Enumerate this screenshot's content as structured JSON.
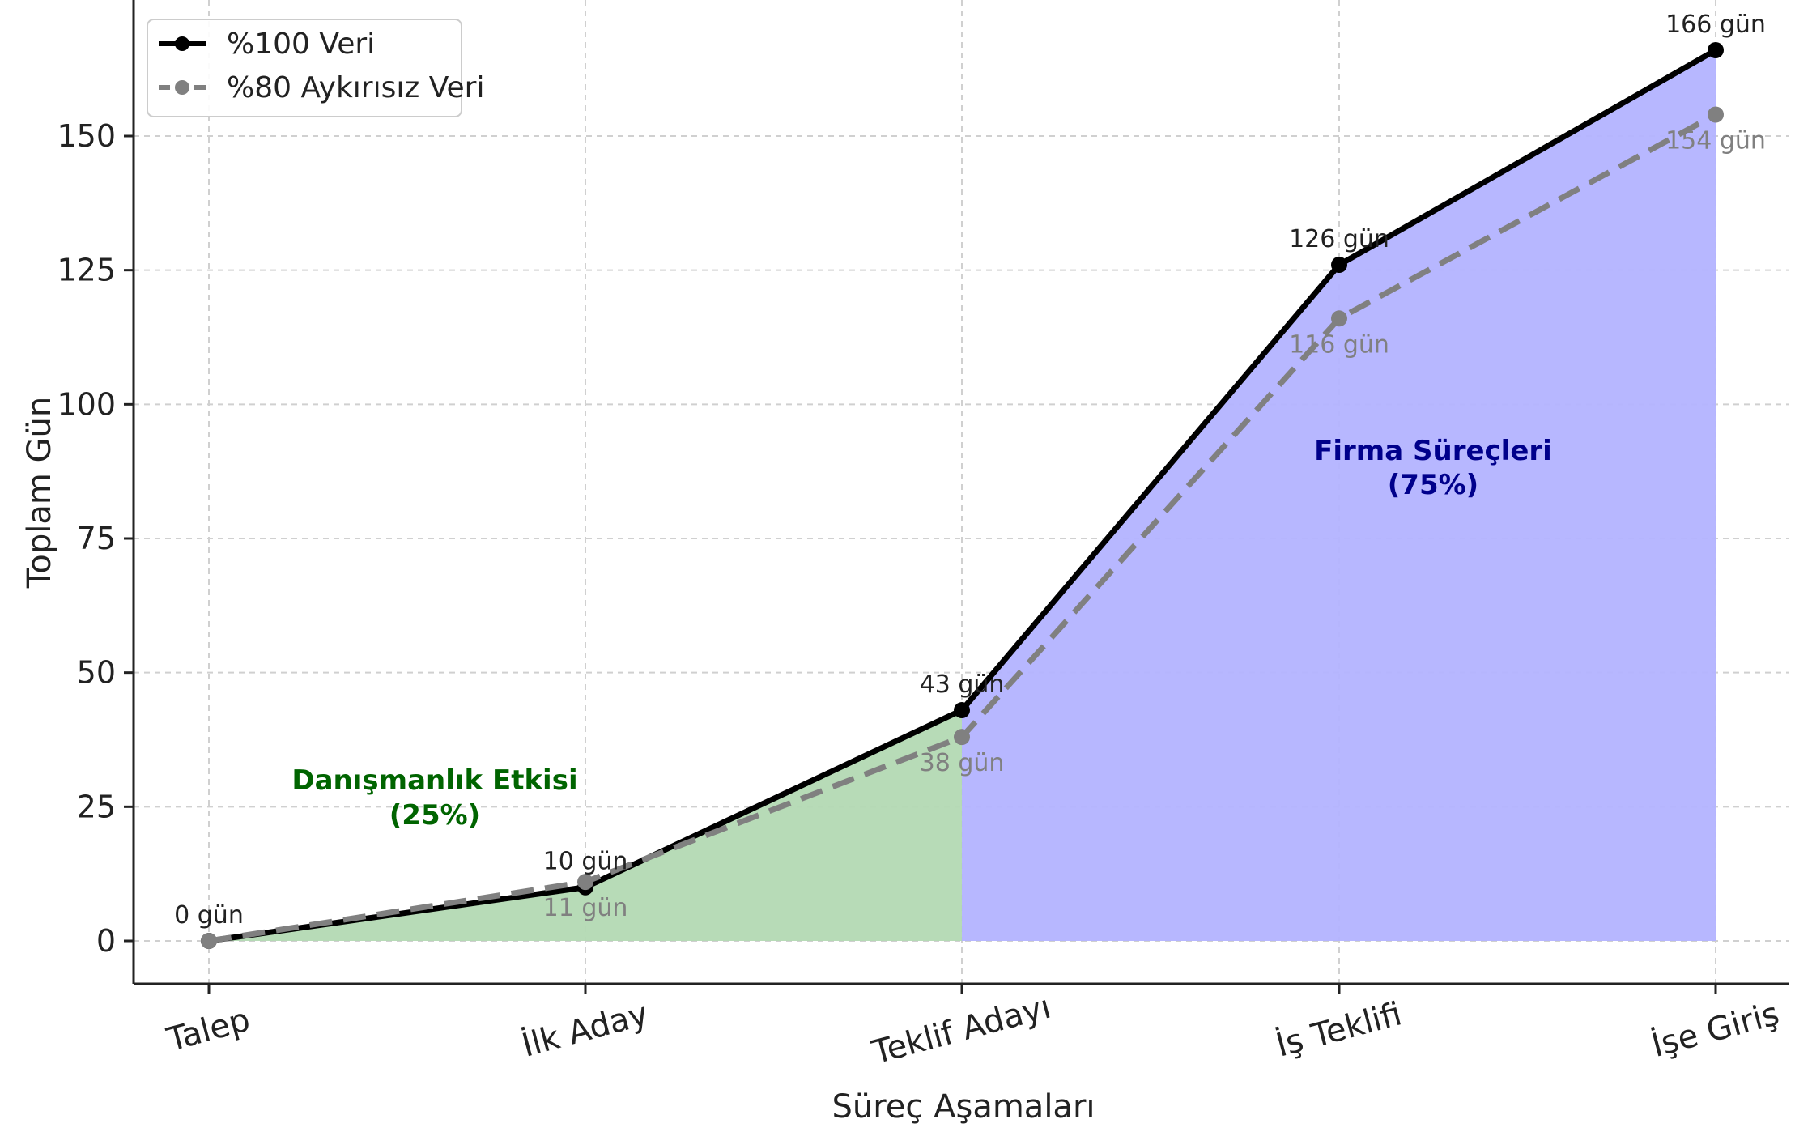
{
  "chart_data": {
    "type": "line",
    "title": "",
    "xlabel": "Süreç Aşamaları",
    "ylabel": "Toplam Gün",
    "categories": [
      "Talep",
      "İlk Aday",
      "Teklif Adayı",
      "İş Teklifi",
      "İşe Giriş"
    ],
    "ylim": [
      -8,
      175
    ],
    "yticks": [
      0,
      25,
      50,
      75,
      100,
      125,
      150
    ],
    "grid": true,
    "legend_position": "top-left",
    "series": [
      {
        "name": "%100 Veri",
        "values": [
          0,
          10,
          43,
          126,
          166
        ],
        "labels": [
          "0 gün",
          "10 gün",
          "43 gün",
          "126 gün",
          "166 gün"
        ],
        "color": "#000000",
        "style": "solid"
      },
      {
        "name": "%80 Aykırısız Veri",
        "values": [
          0,
          11,
          38,
          116,
          154
        ],
        "labels": [
          "",
          "11 gün",
          "38 gün",
          "116 gün",
          "154 gün"
        ],
        "color": "#808080",
        "style": "dashed"
      }
    ],
    "regions": [
      {
        "label_line1": "Danışmanlık Etkisi",
        "label_line2": "(25%)",
        "from_category": 0,
        "to_category": 2,
        "fill": "#b3d9b3",
        "text_color": "#006400"
      },
      {
        "label_line1": "Firma Süreçleri",
        "label_line2": "(75%)",
        "from_category": 2,
        "to_category": 4,
        "fill": "#b3b3ff",
        "text_color": "#00008b"
      }
    ]
  }
}
